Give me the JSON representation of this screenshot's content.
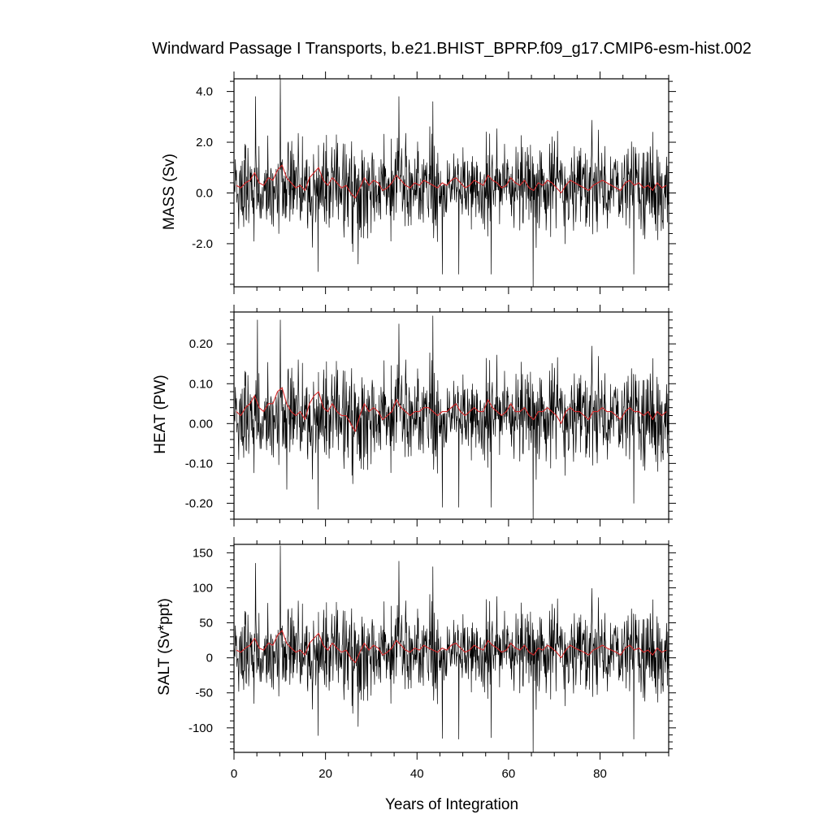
{
  "figure": {
    "title": "Windward Passage I Transports, b.e21.BHIST_BPRP.f09_g17.CMIP6-esm-hist.002",
    "xlabel": "Years of Integration"
  },
  "colors": {
    "raw": "#000000",
    "smooth": "#d62728",
    "axes": "#000000"
  },
  "chart_data": [
    {
      "type": "line",
      "ylabel": "MASS (Sv)",
      "xlim": [
        0,
        95
      ],
      "ylim": [
        -3.7,
        4.5
      ],
      "xticks": [
        0,
        20,
        40,
        60,
        80
      ],
      "yticks": [
        4.0,
        2.0,
        0.0,
        -2.0
      ],
      "ytick_labels": [
        "4.0",
        "2.0",
        "0.0",
        "-2.0"
      ],
      "show_xtick_labels": false,
      "series": [
        {
          "kind": "monthly",
          "mean": 0.25,
          "std": 0.9,
          "spikes": [
            [
              10.1,
              4.5
            ],
            [
              4.7,
              3.8
            ],
            [
              36.0,
              3.8
            ],
            [
              43.4,
              3.6
            ],
            [
              65.3,
              -3.7
            ],
            [
              49.1,
              -3.2
            ],
            [
              45.5,
              -3.2
            ],
            [
              56.2,
              -3.2
            ],
            [
              87.3,
              -3.2
            ],
            [
              18.3,
              -3.1
            ],
            [
              27.1,
              -2.8
            ]
          ]
        },
        {
          "kind": "annual",
          "x": [
            0.5,
            1.5,
            2.5,
            3.5,
            4.5,
            5.5,
            6.5,
            7.5,
            8.5,
            9.5,
            10.5,
            11.5,
            12.5,
            13.5,
            14.5,
            15.5,
            16.5,
            17.5,
            18.5,
            19.5,
            20.5,
            21.5,
            22.5,
            23.5,
            24.5,
            25.5,
            26.5,
            27.5,
            28.5,
            29.5,
            30.5,
            31.5,
            32.5,
            33.5,
            34.5,
            35.5,
            36.5,
            37.5,
            38.5,
            39.5,
            40.5,
            41.5,
            42.5,
            43.5,
            44.5,
            45.5,
            46.5,
            47.5,
            48.5,
            49.5,
            50.5,
            51.5,
            52.5,
            53.5,
            54.5,
            55.5,
            56.5,
            57.5,
            58.5,
            59.5,
            60.5,
            61.5,
            62.5,
            63.5,
            64.5,
            65.5,
            66.5,
            67.5,
            68.5,
            69.5,
            70.5,
            71.5,
            72.5,
            73.5,
            74.5,
            75.5,
            76.5,
            77.5,
            78.5,
            79.5,
            80.5,
            81.5,
            82.5,
            83.5,
            84.5,
            85.5,
            86.5,
            87.5,
            88.5,
            89.5,
            90.5,
            91.5,
            92.5,
            93.5,
            94.5
          ],
          "y": [
            0.3,
            0.2,
            0.4,
            0.5,
            0.8,
            0.4,
            0.3,
            0.6,
            0.5,
            0.9,
            1.1,
            0.6,
            0.4,
            0.2,
            0.3,
            0.1,
            0.6,
            0.8,
            1.0,
            0.5,
            0.3,
            0.6,
            0.4,
            0.2,
            0.3,
            0.0,
            -0.2,
            0.2,
            0.6,
            0.3,
            0.5,
            0.4,
            0.1,
            0.2,
            0.4,
            0.7,
            0.5,
            0.3,
            0.2,
            0.4,
            0.3,
            0.5,
            0.4,
            0.3,
            0.2,
            0.4,
            0.3,
            0.5,
            0.6,
            0.4,
            0.2,
            0.3,
            0.5,
            0.4,
            0.3,
            0.7,
            0.5,
            0.4,
            0.2,
            0.3,
            0.6,
            0.4,
            0.3,
            0.5,
            0.2,
            0.1,
            0.4,
            0.3,
            0.5,
            0.4,
            0.2,
            0.0,
            0.3,
            0.5,
            0.4,
            0.3,
            0.2,
            0.1,
            0.3,
            0.4,
            0.5,
            0.4,
            0.3,
            0.2,
            0.1,
            0.4,
            0.5,
            0.3,
            0.4,
            0.2,
            0.3,
            0.1,
            0.4,
            0.2,
            0.3
          ]
        }
      ]
    },
    {
      "type": "line",
      "ylabel": "HEAT (PW)",
      "xlim": [
        0,
        95
      ],
      "ylim": [
        -0.24,
        0.28
      ],
      "xticks": [
        0,
        20,
        40,
        60,
        80
      ],
      "yticks": [
        0.2,
        0.1,
        0.0,
        -0.1,
        -0.2
      ],
      "ytick_labels": [
        "0.20",
        "0.10",
        "0.00",
        "-0.10",
        "-0.20"
      ],
      "show_xtick_labels": false,
      "series": [
        {
          "kind": "monthly",
          "mean": 0.02,
          "std": 0.06,
          "spikes": [
            [
              43.4,
              0.27
            ],
            [
              10.1,
              0.26
            ],
            [
              5.1,
              0.26
            ],
            [
              36.0,
              0.25
            ],
            [
              65.3,
              -0.24
            ],
            [
              18.3,
              -0.215
            ],
            [
              45.5,
              -0.21
            ],
            [
              56.2,
              -0.21
            ],
            [
              87.3,
              -0.2
            ],
            [
              49.1,
              -0.21
            ],
            [
              11.5,
              -0.165
            ]
          ]
        },
        {
          "kind": "annual",
          "x": [
            0.5,
            1.5,
            2.5,
            3.5,
            4.5,
            5.5,
            6.5,
            7.5,
            8.5,
            9.5,
            10.5,
            11.5,
            12.5,
            13.5,
            14.5,
            15.5,
            16.5,
            17.5,
            18.5,
            19.5,
            20.5,
            21.5,
            22.5,
            23.5,
            24.5,
            25.5,
            26.5,
            27.5,
            28.5,
            29.5,
            30.5,
            31.5,
            32.5,
            33.5,
            34.5,
            35.5,
            36.5,
            37.5,
            38.5,
            39.5,
            40.5,
            41.5,
            42.5,
            43.5,
            44.5,
            45.5,
            46.5,
            47.5,
            48.5,
            49.5,
            50.5,
            51.5,
            52.5,
            53.5,
            54.5,
            55.5,
            56.5,
            57.5,
            58.5,
            59.5,
            60.5,
            61.5,
            62.5,
            63.5,
            64.5,
            65.5,
            66.5,
            67.5,
            68.5,
            69.5,
            70.5,
            71.5,
            72.5,
            73.5,
            74.5,
            75.5,
            76.5,
            77.5,
            78.5,
            79.5,
            80.5,
            81.5,
            82.5,
            83.5,
            84.5,
            85.5,
            86.5,
            87.5,
            88.5,
            89.5,
            90.5,
            91.5,
            92.5,
            93.5,
            94.5
          ],
          "y": [
            0.03,
            0.02,
            0.04,
            0.05,
            0.07,
            0.04,
            0.03,
            0.05,
            0.05,
            0.08,
            0.09,
            0.05,
            0.03,
            0.02,
            0.03,
            0.01,
            0.05,
            0.07,
            0.08,
            0.04,
            0.03,
            0.05,
            0.03,
            0.02,
            0.02,
            0.0,
            -0.02,
            0.02,
            0.05,
            0.03,
            0.04,
            0.03,
            0.01,
            0.02,
            0.03,
            0.06,
            0.04,
            0.03,
            0.02,
            0.03,
            0.03,
            0.04,
            0.04,
            0.03,
            0.02,
            0.03,
            0.03,
            0.04,
            0.05,
            0.03,
            0.02,
            0.03,
            0.04,
            0.03,
            0.03,
            0.06,
            0.04,
            0.03,
            0.02,
            0.03,
            0.05,
            0.03,
            0.03,
            0.04,
            0.02,
            0.01,
            0.03,
            0.03,
            0.04,
            0.03,
            0.02,
            0.0,
            0.03,
            0.04,
            0.03,
            0.03,
            0.02,
            0.01,
            0.03,
            0.03,
            0.04,
            0.03,
            0.03,
            0.02,
            0.01,
            0.03,
            0.04,
            0.03,
            0.03,
            0.02,
            0.03,
            0.01,
            0.03,
            0.02,
            0.03
          ]
        }
      ]
    },
    {
      "type": "line",
      "ylabel": "SALT (Sv*ppt)",
      "xlim": [
        0,
        95
      ],
      "ylim": [
        -135,
        162
      ],
      "xticks": [
        0,
        20,
        40,
        60,
        80
      ],
      "yticks": [
        150,
        100,
        50,
        0,
        -50,
        -100
      ],
      "ytick_labels": [
        "150",
        "100",
        "50",
        "0",
        "-50",
        "-100"
      ],
      "show_xtick_labels": true,
      "xtick_labels": [
        "0",
        "20",
        "40",
        "60",
        "80"
      ],
      "series": [
        {
          "kind": "monthly",
          "mean": 9,
          "std": 31,
          "spikes": [
            [
              10.1,
              160
            ],
            [
              36.0,
              138
            ],
            [
              4.7,
              135
            ],
            [
              43.4,
              130
            ],
            [
              65.3,
              -135
            ],
            [
              49.1,
              -116
            ],
            [
              45.5,
              -115
            ],
            [
              56.2,
              -114
            ],
            [
              87.3,
              -116
            ],
            [
              18.3,
              -111
            ],
            [
              27.1,
              -98
            ]
          ]
        },
        {
          "kind": "annual",
          "x": [
            0.5,
            1.5,
            2.5,
            3.5,
            4.5,
            5.5,
            6.5,
            7.5,
            8.5,
            9.5,
            10.5,
            11.5,
            12.5,
            13.5,
            14.5,
            15.5,
            16.5,
            17.5,
            18.5,
            19.5,
            20.5,
            21.5,
            22.5,
            23.5,
            24.5,
            25.5,
            26.5,
            27.5,
            28.5,
            29.5,
            30.5,
            31.5,
            32.5,
            33.5,
            34.5,
            35.5,
            36.5,
            37.5,
            38.5,
            39.5,
            40.5,
            41.5,
            42.5,
            43.5,
            44.5,
            45.5,
            46.5,
            47.5,
            48.5,
            49.5,
            50.5,
            51.5,
            52.5,
            53.5,
            54.5,
            55.5,
            56.5,
            57.5,
            58.5,
            59.5,
            60.5,
            61.5,
            62.5,
            63.5,
            64.5,
            65.5,
            66.5,
            67.5,
            68.5,
            69.5,
            70.5,
            71.5,
            72.5,
            73.5,
            74.5,
            75.5,
            76.5,
            77.5,
            78.5,
            79.5,
            80.5,
            81.5,
            82.5,
            83.5,
            84.5,
            85.5,
            86.5,
            87.5,
            88.5,
            89.5,
            90.5,
            91.5,
            92.5,
            93.5,
            94.5
          ],
          "y": [
            11,
            8,
            14,
            18,
            28,
            14,
            11,
            21,
            18,
            32,
            39,
            21,
            14,
            8,
            11,
            4,
            21,
            28,
            35,
            18,
            11,
            21,
            14,
            8,
            11,
            0,
            -7,
            8,
            21,
            11,
            18,
            14,
            4,
            8,
            14,
            25,
            18,
            11,
            8,
            14,
            11,
            18,
            14,
            11,
            8,
            14,
            11,
            18,
            21,
            14,
            8,
            11,
            18,
            14,
            11,
            25,
            18,
            14,
            8,
            11,
            21,
            14,
            11,
            18,
            8,
            4,
            14,
            11,
            18,
            14,
            8,
            0,
            11,
            18,
            14,
            11,
            8,
            4,
            11,
            14,
            18,
            14,
            11,
            8,
            4,
            14,
            18,
            11,
            14,
            8,
            11,
            4,
            14,
            8,
            11
          ]
        }
      ]
    }
  ]
}
